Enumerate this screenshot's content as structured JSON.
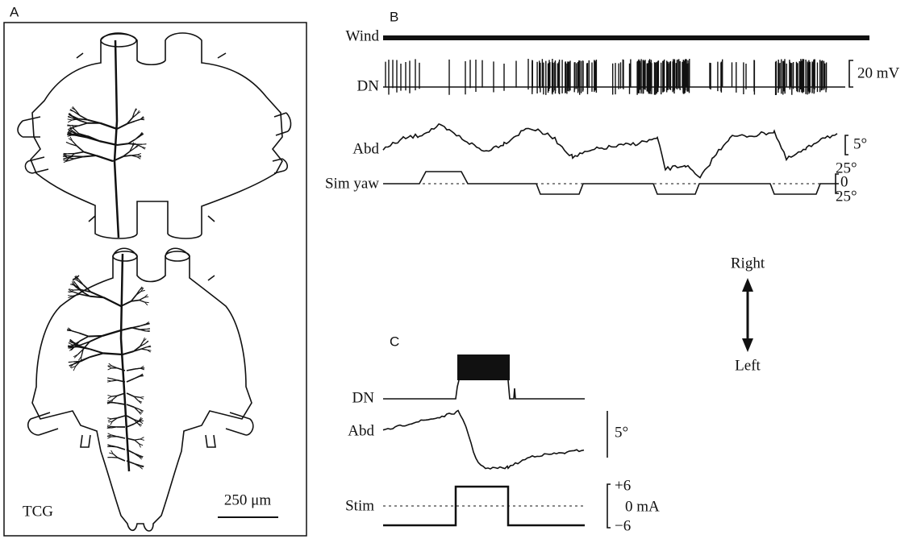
{
  "panel_a": {
    "label": "A",
    "ganglion_label": "TCG",
    "scale_bar": "250 μm"
  },
  "panel_b": {
    "label": "B",
    "wind": "Wind",
    "dn": "DN",
    "dn_scale": "20 mV",
    "abd": "Abd",
    "abd_scale": "5°",
    "sim_yaw": "Sim yaw",
    "yaw_scale_top": "25°",
    "yaw_scale_zero": "0",
    "yaw_scale_bottom": "25°"
  },
  "direction": {
    "top": "Right",
    "bottom": "Left"
  },
  "panel_c": {
    "label": "C",
    "dn": "DN",
    "abd": "Abd",
    "abd_scale": "5°",
    "stim": "Stim",
    "stim_top": "+6",
    "stim_zero": "0 mA",
    "stim_bottom": "−6"
  }
}
